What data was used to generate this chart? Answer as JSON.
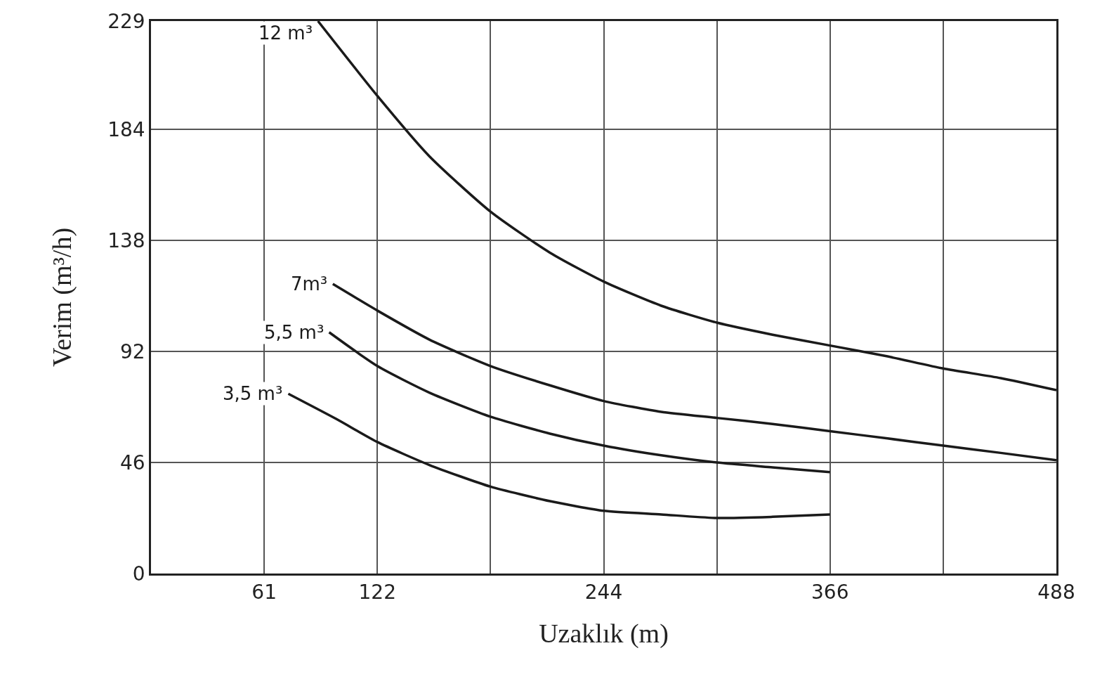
{
  "chart_data": {
    "type": "line",
    "xlabel": "Uzaklık (m)",
    "ylabel": "Verim (m³/h)",
    "xlim": [
      0,
      488
    ],
    "ylim": [
      0,
      229
    ],
    "xticks": [
      {
        "value": 0,
        "label": null
      },
      61,
      122,
      {
        "value": 183,
        "label": null
      },
      244,
      {
        "value": 305,
        "label": null
      },
      366,
      {
        "value": 427,
        "label": null
      },
      488
    ],
    "yticks": [
      0,
      46,
      92,
      138,
      184,
      229
    ],
    "grid": true,
    "legend": false,
    "marker": "none",
    "line_style": "solid",
    "series": [
      {
        "name": "12 m³",
        "color": "#1a1a1a",
        "x": [
          90,
          122,
          150,
          183,
          215,
          244,
          275,
          305,
          335,
          366,
          397,
          427,
          458,
          488
        ],
        "values": [
          229,
          198,
          173,
          150,
          133,
          121,
          111,
          104,
          99,
          94.5,
          90,
          85,
          81,
          76
        ]
      },
      {
        "name": "7m³",
        "color": "#1a1a1a",
        "x": [
          98,
          122,
          150,
          183,
          215,
          244,
          275,
          305,
          335,
          366,
          397,
          427,
          458,
          488
        ],
        "values": [
          120,
          109,
          97,
          86,
          78,
          71.5,
          67,
          64.5,
          62,
          59,
          56,
          53,
          50,
          47
        ]
      },
      {
        "name": "5,5 m³",
        "color": "#1a1a1a",
        "x": [
          96,
          122,
          150,
          183,
          215,
          244,
          275,
          305,
          335,
          366
        ],
        "values": [
          100,
          86,
          75,
          65,
          58,
          53,
          49,
          46,
          44,
          42
        ]
      },
      {
        "name": "3,5 m³",
        "color": "#1a1a1a",
        "x": [
          74,
          100,
          122,
          150,
          183,
          215,
          244,
          275,
          305,
          335,
          366
        ],
        "values": [
          74.5,
          64,
          54.5,
          45,
          36,
          30,
          26,
          24.5,
          23,
          23.5,
          24.5
        ]
      }
    ]
  }
}
